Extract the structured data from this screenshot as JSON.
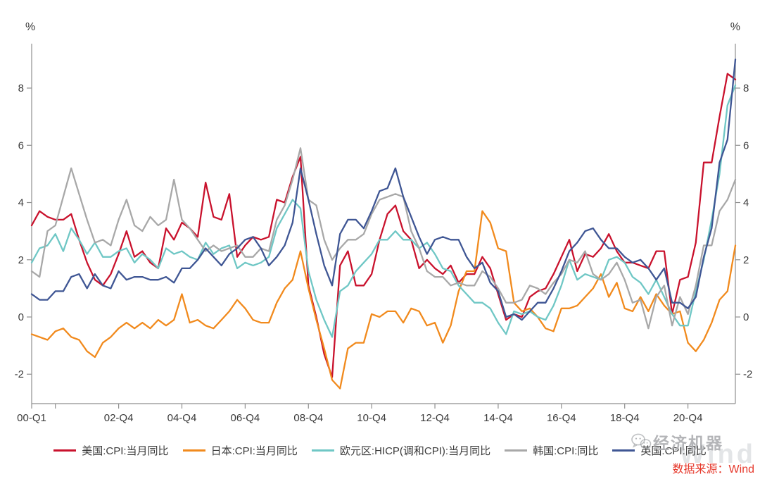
{
  "chart": {
    "unit_left": "%",
    "unit_right": "%",
    "axis_color": "#8f8f8f",
    "tick_text_color": "#3a3a3a",
    "y_ticks": [
      8,
      6,
      4,
      2,
      0,
      -2
    ],
    "x_ticks": [
      {
        "q": 0,
        "label": "00-Q1"
      },
      {
        "q": 11,
        "label": "02-Q4"
      },
      {
        "q": 19,
        "label": "04-Q4"
      },
      {
        "q": 27,
        "label": "06-Q4"
      },
      {
        "q": 35,
        "label": "08-Q4"
      },
      {
        "q": 43,
        "label": "10-Q4"
      },
      {
        "q": 51,
        "label": "12-Q4"
      },
      {
        "q": 59,
        "label": "14-Q4"
      },
      {
        "q": 67,
        "label": "16-Q4"
      },
      {
        "q": 75,
        "label": "18-Q4"
      },
      {
        "q": 83,
        "label": "20-Q4"
      }
    ],
    "minor_x_ticks": [
      3
    ]
  },
  "chart_data": {
    "type": "line",
    "x_start": "2000-Q1",
    "x_end": "2022-Q2",
    "x_step": "quarter",
    "ylim": [
      -3,
      9.6
    ],
    "grid": false,
    "legend_position": "bottom",
    "series": [
      {
        "name": "美国:CPI:当月同比",
        "color": "#c9122d",
        "values": [
          3.2,
          3.7,
          3.5,
          3.4,
          3.4,
          3.6,
          2.7,
          1.9,
          1.3,
          1.1,
          1.5,
          2.2,
          3.0,
          2.1,
          2.3,
          1.9,
          1.7,
          3.1,
          2.7,
          3.3,
          3.1,
          2.8,
          4.7,
          3.5,
          3.4,
          4.3,
          2.1,
          2.5,
          2.8,
          2.7,
          2.8,
          4.1,
          4.0,
          4.9,
          5.6,
          1.1,
          0.0,
          -1.3,
          -2.1,
          1.8,
          2.3,
          1.1,
          1.1,
          1.5,
          2.7,
          3.6,
          3.9,
          3.0,
          2.7,
          1.7,
          2.0,
          1.7,
          1.5,
          1.8,
          1.2,
          1.5,
          1.5,
          2.1,
          1.7,
          0.8,
          -0.1,
          0.1,
          0.0,
          0.7,
          0.9,
          1.0,
          1.5,
          2.1,
          2.7,
          1.6,
          2.2,
          2.1,
          2.4,
          2.9,
          2.3,
          1.9,
          1.9,
          1.8,
          1.7,
          2.3,
          2.3,
          0.1,
          1.3,
          1.4,
          2.6,
          5.4,
          5.4,
          7.0,
          8.5,
          8.3
        ]
      },
      {
        "name": "日本:CPI:当月同比",
        "color": "#f18a1d",
        "values": [
          -0.6,
          -0.7,
          -0.8,
          -0.5,
          -0.4,
          -0.7,
          -0.8,
          -1.2,
          -1.4,
          -0.9,
          -0.7,
          -0.4,
          -0.2,
          -0.4,
          -0.2,
          -0.4,
          -0.1,
          -0.3,
          -0.1,
          0.8,
          -0.2,
          -0.1,
          -0.3,
          -0.4,
          -0.1,
          0.2,
          0.6,
          0.3,
          -0.1,
          -0.2,
          -0.2,
          0.5,
          1.0,
          1.3,
          2.3,
          1.0,
          -0.1,
          -1.1,
          -2.2,
          -2.5,
          -1.1,
          -0.9,
          -0.9,
          0.1,
          0.0,
          0.2,
          0.2,
          -0.2,
          0.3,
          0.2,
          -0.3,
          -0.2,
          -0.9,
          -0.3,
          0.9,
          1.6,
          1.6,
          3.7,
          3.3,
          2.4,
          2.3,
          0.5,
          0.2,
          0.3,
          0.0,
          -0.4,
          -0.5,
          0.3,
          0.3,
          0.4,
          0.7,
          1.0,
          1.5,
          0.7,
          1.2,
          0.3,
          0.2,
          0.7,
          0.2,
          0.8,
          0.4,
          0.1,
          0.2,
          -0.9,
          -1.2,
          -0.8,
          -0.2,
          0.6,
          0.9,
          2.5
        ]
      },
      {
        "name": "欧元区:HICP(调和CPI):当月同比",
        "color": "#6fc7c5",
        "values": [
          1.9,
          2.4,
          2.5,
          2.9,
          2.3,
          3.1,
          2.7,
          2.2,
          2.6,
          2.1,
          2.1,
          2.3,
          2.4,
          1.9,
          2.2,
          2.0,
          1.7,
          2.4,
          2.2,
          2.3,
          2.1,
          2.0,
          2.6,
          2.2,
          2.4,
          2.5,
          1.7,
          1.9,
          1.8,
          1.9,
          2.1,
          3.1,
          3.6,
          4.1,
          3.8,
          1.6,
          0.6,
          -0.1,
          -0.7,
          0.9,
          1.1,
          1.6,
          1.9,
          2.2,
          2.7,
          2.7,
          3.0,
          2.7,
          2.7,
          2.4,
          2.6,
          2.2,
          1.7,
          1.6,
          1.1,
          0.8,
          0.5,
          0.5,
          0.3,
          -0.2,
          -0.6,
          0.2,
          0.1,
          0.2,
          0.0,
          -0.1,
          0.4,
          1.1,
          2.0,
          1.3,
          1.5,
          1.4,
          1.3,
          2.0,
          2.1,
          1.9,
          1.4,
          1.2,
          0.8,
          1.3,
          0.7,
          0.1,
          -0.3,
          -0.3,
          0.9,
          2.0,
          3.4,
          5.0,
          7.4,
          8.1
        ]
      },
      {
        "name": "韩国:CPI:同比",
        "color": "#a8a8a8",
        "values": [
          1.6,
          1.4,
          3.0,
          3.2,
          4.2,
          5.2,
          4.3,
          3.4,
          2.6,
          2.7,
          2.5,
          3.4,
          4.1,
          3.2,
          3.0,
          3.5,
          3.2,
          3.4,
          4.8,
          3.4,
          3.1,
          2.7,
          2.3,
          2.5,
          2.3,
          2.4,
          2.5,
          2.1,
          2.1,
          2.4,
          2.3,
          3.4,
          3.9,
          4.8,
          5.9,
          4.1,
          3.9,
          2.7,
          2.0,
          2.4,
          2.7,
          2.7,
          2.9,
          3.6,
          4.1,
          4.2,
          4.3,
          4.2,
          3.0,
          2.4,
          1.6,
          1.4,
          1.4,
          1.1,
          1.2,
          1.1,
          1.1,
          1.6,
          1.4,
          1.0,
          0.5,
          0.5,
          0.6,
          1.1,
          1.0,
          0.8,
          1.2,
          1.5,
          2.0,
          1.9,
          2.3,
          1.5,
          1.3,
          1.5,
          1.9,
          1.3,
          0.5,
          0.6,
          -0.4,
          0.7,
          1.1,
          -0.3,
          0.7,
          0.1,
          1.1,
          2.5,
          2.5,
          3.7,
          4.1,
          4.8
        ]
      },
      {
        "name": "英国:CPI:同比",
        "color": "#3f5694",
        "values": [
          0.8,
          0.6,
          0.6,
          0.9,
          0.9,
          1.4,
          1.5,
          1.0,
          1.5,
          1.1,
          1.0,
          1.6,
          1.3,
          1.4,
          1.4,
          1.3,
          1.3,
          1.4,
          1.2,
          1.7,
          1.7,
          2.0,
          2.4,
          2.1,
          1.8,
          2.2,
          2.4,
          2.7,
          2.8,
          2.4,
          1.8,
          2.1,
          2.5,
          3.3,
          5.2,
          4.1,
          2.9,
          1.8,
          1.1,
          2.9,
          3.4,
          3.4,
          3.1,
          3.7,
          4.4,
          4.5,
          5.2,
          4.2,
          3.5,
          2.8,
          2.2,
          2.7,
          2.8,
          2.7,
          2.7,
          2.1,
          1.7,
          1.9,
          1.2,
          0.9,
          0.0,
          0.1,
          -0.1,
          0.2,
          0.5,
          0.5,
          1.0,
          1.6,
          2.3,
          2.6,
          3.0,
          3.1,
          2.7,
          2.4,
          2.4,
          2.1,
          1.9,
          2.0,
          1.7,
          1.3,
          1.7,
          0.5,
          0.5,
          0.3,
          0.7,
          2.1,
          3.1,
          5.4,
          6.2,
          9.0
        ]
      }
    ]
  },
  "watermark": {
    "icon": "wechat-icon",
    "text": "经济机器",
    "wind": "Wind"
  },
  "source": {
    "label": "数据来源：Wind",
    "color": "#e6392c"
  }
}
